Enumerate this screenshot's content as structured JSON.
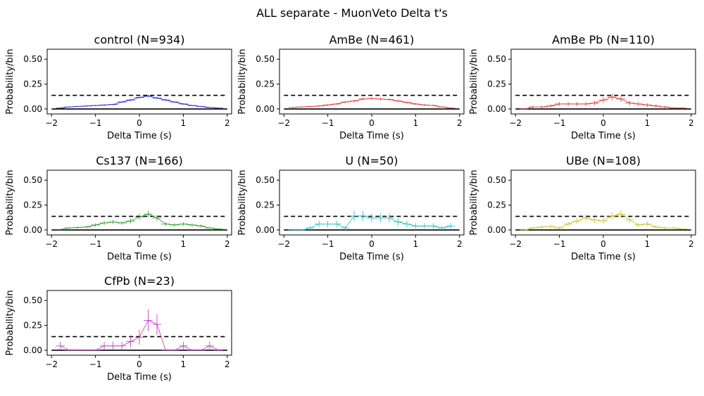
{
  "figure": {
    "title": "ALL separate - MuonVeto Delta t's"
  },
  "chart_data": [
    {
      "type": "line",
      "title": "control (N=934)",
      "xlabel": "Delta Time (s)",
      "ylabel": "Probability/bin",
      "xlim": [
        -2.1,
        2.1
      ],
      "ylim": [
        -0.05,
        0.6
      ],
      "xticks": [
        "-2",
        "-1",
        "0",
        "1",
        "2"
      ],
      "yticks": [
        "0.00",
        "0.25",
        "0.50"
      ],
      "dashed_ref": 0.137,
      "zero_line": 0,
      "color": "#1f1fd0",
      "x": [
        -1.8,
        -1.6,
        -1.4,
        -1.2,
        -1.0,
        -0.8,
        -0.6,
        -0.4,
        -0.2,
        0.0,
        0.2,
        0.4,
        0.6,
        0.8,
        1.0,
        1.2,
        1.4,
        1.6,
        1.8
      ],
      "y": [
        0.01,
        0.02,
        0.025,
        0.03,
        0.035,
        0.04,
        0.045,
        0.07,
        0.09,
        0.115,
        0.13,
        0.11,
        0.09,
        0.07,
        0.05,
        0.035,
        0.025,
        0.015,
        0.01
      ],
      "yerr": [
        0.004,
        0.005,
        0.005,
        0.006,
        0.006,
        0.007,
        0.007,
        0.009,
        0.01,
        0.011,
        0.012,
        0.011,
        0.01,
        0.009,
        0.007,
        0.006,
        0.005,
        0.004,
        0.003
      ]
    },
    {
      "type": "line",
      "title": "AmBe (N=461)",
      "xlabel": "Delta Time (s)",
      "ylabel": "Probability/bin",
      "xlim": [
        -2.1,
        2.1
      ],
      "ylim": [
        -0.05,
        0.6
      ],
      "xticks": [
        "-2",
        "-1",
        "0",
        "1",
        "2"
      ],
      "yticks": [
        "0.00",
        "0.25",
        "0.50"
      ],
      "dashed_ref": 0.137,
      "zero_line": 0,
      "color": "#e03030",
      "x": [
        -1.8,
        -1.6,
        -1.4,
        -1.2,
        -1.0,
        -0.8,
        -0.6,
        -0.4,
        -0.2,
        0.0,
        0.2,
        0.4,
        0.6,
        0.8,
        1.0,
        1.2,
        1.4,
        1.6,
        1.8
      ],
      "y": [
        0.015,
        0.02,
        0.025,
        0.03,
        0.04,
        0.05,
        0.07,
        0.08,
        0.1,
        0.105,
        0.1,
        0.095,
        0.08,
        0.065,
        0.05,
        0.04,
        0.035,
        0.02,
        0.01
      ],
      "yerr": [
        0.006,
        0.007,
        0.007,
        0.008,
        0.009,
        0.01,
        0.012,
        0.013,
        0.015,
        0.015,
        0.015,
        0.014,
        0.013,
        0.012,
        0.01,
        0.009,
        0.009,
        0.007,
        0.005
      ]
    },
    {
      "type": "line",
      "title": "AmBe Pb (N=110)",
      "xlabel": "Delta Time (s)",
      "ylabel": "Probability/bin",
      "xlim": [
        -2.1,
        2.1
      ],
      "ylim": [
        -0.05,
        0.6
      ],
      "xticks": [
        "-2",
        "-1",
        "0",
        "1",
        "2"
      ],
      "yticks": [
        "0.00",
        "0.25",
        "0.50"
      ],
      "dashed_ref": 0.137,
      "zero_line": 0,
      "color": "#e03030",
      "x": [
        -1.8,
        -1.6,
        -1.4,
        -1.2,
        -1.0,
        -0.8,
        -0.6,
        -0.4,
        -0.2,
        0.0,
        0.2,
        0.4,
        0.6,
        0.8,
        1.0,
        1.2,
        1.4,
        1.6,
        1.8
      ],
      "y": [
        0.0,
        0.02,
        0.02,
        0.03,
        0.05,
        0.05,
        0.05,
        0.05,
        0.06,
        0.09,
        0.12,
        0.1,
        0.06,
        0.05,
        0.04,
        0.03,
        0.02,
        0.01,
        0.01
      ],
      "yerr": [
        0.0,
        0.013,
        0.013,
        0.017,
        0.021,
        0.021,
        0.021,
        0.021,
        0.023,
        0.029,
        0.033,
        0.03,
        0.023,
        0.021,
        0.019,
        0.017,
        0.013,
        0.009,
        0.009
      ]
    },
    {
      "type": "line",
      "title": "Cs137 (N=166)",
      "xlabel": "Delta Time (s)",
      "ylabel": "Probability/bin",
      "xlim": [
        -2.1,
        2.1
      ],
      "ylim": [
        -0.05,
        0.6
      ],
      "xticks": [
        "-2",
        "-1",
        "0",
        "1",
        "2"
      ],
      "yticks": [
        "0.00",
        "0.25",
        "0.50"
      ],
      "dashed_ref": 0.137,
      "zero_line": 0,
      "color": "#2a9a2a",
      "x": [
        -1.8,
        -1.6,
        -1.4,
        -1.2,
        -1.0,
        -0.8,
        -0.6,
        -0.4,
        -0.2,
        0.0,
        0.2,
        0.4,
        0.6,
        0.8,
        1.0,
        1.2,
        1.4,
        1.6,
        1.8
      ],
      "y": [
        0.005,
        0.02,
        0.025,
        0.03,
        0.05,
        0.07,
        0.08,
        0.07,
        0.09,
        0.13,
        0.16,
        0.12,
        0.06,
        0.05,
        0.06,
        0.05,
        0.04,
        0.02,
        0.01
      ],
      "yerr": [
        0.005,
        0.011,
        0.012,
        0.013,
        0.017,
        0.02,
        0.022,
        0.02,
        0.023,
        0.028,
        0.031,
        0.027,
        0.019,
        0.017,
        0.019,
        0.017,
        0.015,
        0.011,
        0.008
      ]
    },
    {
      "type": "line",
      "title": "U (N=50)",
      "xlabel": "Delta Time (s)",
      "ylabel": "Probability/bin",
      "xlim": [
        -2.1,
        2.1
      ],
      "ylim": [
        -0.05,
        0.6
      ],
      "xticks": [
        "-2",
        "-1",
        "0",
        "1",
        "2"
      ],
      "yticks": [
        "0.00",
        "0.25",
        "0.50"
      ],
      "dashed_ref": 0.137,
      "zero_line": 0,
      "color": "#20b8c8",
      "x": [
        -1.8,
        -1.6,
        -1.4,
        -1.2,
        -1.0,
        -0.8,
        -0.6,
        -0.4,
        -0.2,
        0.0,
        0.2,
        0.4,
        0.6,
        0.8,
        1.0,
        1.2,
        1.4,
        1.6,
        1.8
      ],
      "y": [
        0.0,
        0.0,
        0.02,
        0.06,
        0.06,
        0.06,
        0.02,
        0.14,
        0.14,
        0.12,
        0.12,
        0.12,
        0.08,
        0.06,
        0.04,
        0.04,
        0.04,
        0.02,
        0.04
      ],
      "yerr": [
        0.0,
        0.0,
        0.02,
        0.035,
        0.035,
        0.035,
        0.02,
        0.05,
        0.05,
        0.045,
        0.045,
        0.045,
        0.04,
        0.035,
        0.028,
        0.028,
        0.028,
        0.02,
        0.028
      ]
    },
    {
      "type": "line",
      "title": "UBe (N=108)",
      "xlabel": "Delta Time (s)",
      "ylabel": "Probability/bin",
      "xlim": [
        -2.1,
        2.1
      ],
      "ylim": [
        -0.05,
        0.6
      ],
      "xticks": [
        "-2",
        "-1",
        "0",
        "1",
        "2"
      ],
      "yticks": [
        "0.00",
        "0.25",
        "0.50"
      ],
      "dashed_ref": 0.137,
      "zero_line": 0,
      "color": "#c8c020",
      "x": [
        -1.8,
        -1.6,
        -1.4,
        -1.2,
        -1.0,
        -0.8,
        -0.6,
        -0.4,
        -0.2,
        0.0,
        0.2,
        0.4,
        0.6,
        0.8,
        1.0,
        1.2,
        1.4,
        1.6,
        1.8
      ],
      "y": [
        0.0,
        0.02,
        0.03,
        0.035,
        0.02,
        0.06,
        0.09,
        0.12,
        0.1,
        0.09,
        0.14,
        0.16,
        0.1,
        0.05,
        0.06,
        0.03,
        0.02,
        0.02,
        0.01
      ],
      "yerr": [
        0.0,
        0.014,
        0.017,
        0.018,
        0.014,
        0.024,
        0.029,
        0.033,
        0.03,
        0.029,
        0.036,
        0.038,
        0.03,
        0.021,
        0.024,
        0.017,
        0.014,
        0.014,
        0.01
      ]
    },
    {
      "type": "line",
      "title": "CfPb (N=23)",
      "xlabel": "Delta Time (s)",
      "ylabel": "Probability/bin",
      "xlim": [
        -2.1,
        2.1
      ],
      "ylim": [
        -0.05,
        0.6
      ],
      "xticks": [
        "-2",
        "-1",
        "0",
        "1",
        "2"
      ],
      "yticks": [
        "0.00",
        "0.25",
        "0.50"
      ],
      "dashed_ref": 0.137,
      "zero_line": 0,
      "color": "#c030c0",
      "x": [
        -1.8,
        -1.6,
        -1.4,
        -1.2,
        -1.0,
        -0.8,
        -0.6,
        -0.4,
        -0.2,
        0.0,
        0.2,
        0.4,
        0.6,
        0.8,
        1.0,
        1.2,
        1.4,
        1.6,
        1.8
      ],
      "y": [
        0.043,
        0.0,
        0.0,
        0.0,
        0.0,
        0.043,
        0.043,
        0.043,
        0.087,
        0.13,
        0.3,
        0.26,
        0.0,
        0.0,
        0.043,
        0.0,
        0.0,
        0.043,
        0.0
      ],
      "yerr": [
        0.043,
        0.0,
        0.0,
        0.0,
        0.0,
        0.043,
        0.043,
        0.043,
        0.06,
        0.075,
        0.11,
        0.105,
        0.0,
        0.0,
        0.043,
        0.0,
        0.0,
        0.043,
        0.0
      ]
    }
  ]
}
